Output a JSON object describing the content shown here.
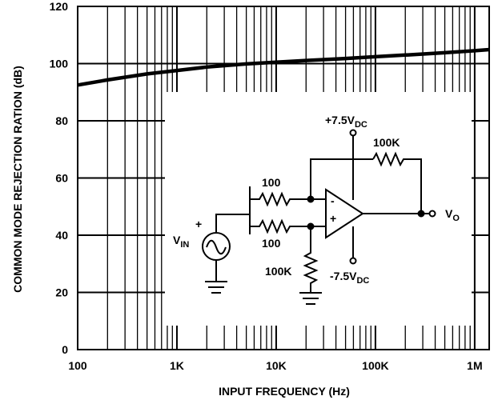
{
  "chart_data": {
    "type": "line",
    "title": "",
    "xlabel": "INPUT FREQUENCY (Hz)",
    "ylabel": "COMMON MODE REJECTION RATION (dB)",
    "x_scale": "log",
    "xlim": [
      100,
      1400000
    ],
    "ylim": [
      0,
      120
    ],
    "x_ticks": [
      {
        "value": 100,
        "label": "100"
      },
      {
        "value": 1000,
        "label": "1K"
      },
      {
        "value": 10000,
        "label": "10K"
      },
      {
        "value": 100000,
        "label": "100K"
      },
      {
        "value": 1000000,
        "label": "1M"
      }
    ],
    "y_ticks": [
      {
        "value": 0,
        "label": "0"
      },
      {
        "value": 20,
        "label": "20"
      },
      {
        "value": 40,
        "label": "40"
      },
      {
        "value": 60,
        "label": "60"
      },
      {
        "value": 80,
        "label": "80"
      },
      {
        "value": 100,
        "label": "100"
      },
      {
        "value": 120,
        "label": "120"
      }
    ],
    "grid": true,
    "series": [
      {
        "x": [
          100,
          200,
          500,
          1000,
          2000,
          5000,
          10000,
          20000,
          50000,
          100000,
          200000,
          500000,
          1000000,
          1400000
        ],
        "y": [
          92.5,
          94.3,
          96.4,
          97.6,
          98.8,
          99.9,
          100.5,
          101.1,
          101.8,
          102.4,
          103.0,
          103.8,
          104.5,
          104.9
        ]
      }
    ],
    "color": "#000000"
  },
  "inset_circuit": {
    "labels": {
      "vplus": "+7.5V",
      "vplus_sub": "DC",
      "vminus": "-7.5V",
      "vminus_sub": "DC",
      "r_feedback": "100K",
      "r_top": "100",
      "r_bottom": "100",
      "r_ground": "100K",
      "vin_plus": "+",
      "vin": "V",
      "vin_sub": "IN",
      "vout": "V",
      "vout_sub": "O",
      "opamp_minus": "-",
      "opamp_plus": "+"
    }
  }
}
